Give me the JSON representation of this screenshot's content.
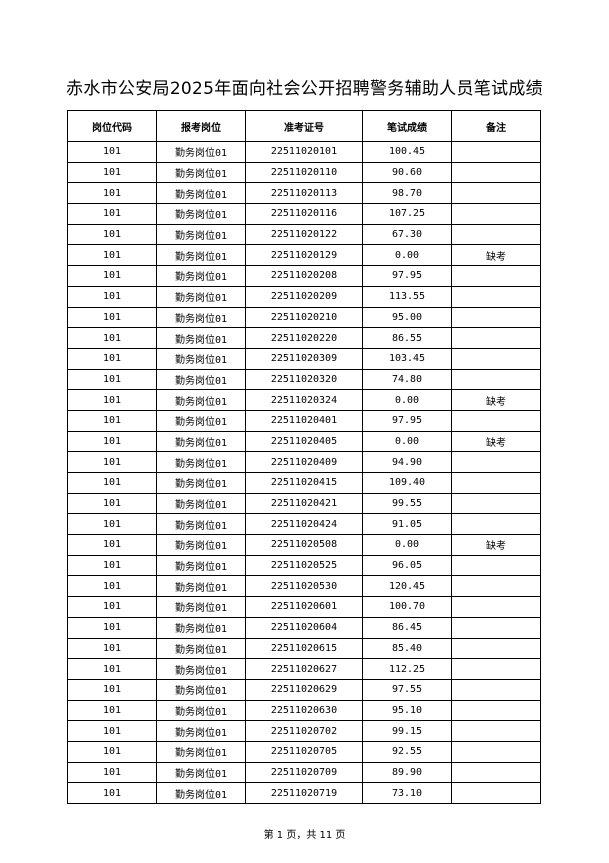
{
  "title": "赤水市公安局2025年面向社会公开招聘警务辅助人员笔试成绩",
  "table": {
    "headers": [
      "岗位代码",
      "报考岗位",
      "准考证号",
      "笔试成绩",
      "备注"
    ],
    "rows": [
      [
        "101",
        "勤务岗位01",
        "22511020101",
        "100.45",
        ""
      ],
      [
        "101",
        "勤务岗位01",
        "22511020110",
        "90.60",
        ""
      ],
      [
        "101",
        "勤务岗位01",
        "22511020113",
        "98.70",
        ""
      ],
      [
        "101",
        "勤务岗位01",
        "22511020116",
        "107.25",
        ""
      ],
      [
        "101",
        "勤务岗位01",
        "22511020122",
        "67.30",
        ""
      ],
      [
        "101",
        "勤务岗位01",
        "22511020129",
        "0.00",
        "缺考"
      ],
      [
        "101",
        "勤务岗位01",
        "22511020208",
        "97.95",
        ""
      ],
      [
        "101",
        "勤务岗位01",
        "22511020209",
        "113.55",
        ""
      ],
      [
        "101",
        "勤务岗位01",
        "22511020210",
        "95.00",
        ""
      ],
      [
        "101",
        "勤务岗位01",
        "22511020220",
        "86.55",
        ""
      ],
      [
        "101",
        "勤务岗位01",
        "22511020309",
        "103.45",
        ""
      ],
      [
        "101",
        "勤务岗位01",
        "22511020320",
        "74.80",
        ""
      ],
      [
        "101",
        "勤务岗位01",
        "22511020324",
        "0.00",
        "缺考"
      ],
      [
        "101",
        "勤务岗位01",
        "22511020401",
        "97.95",
        ""
      ],
      [
        "101",
        "勤务岗位01",
        "22511020405",
        "0.00",
        "缺考"
      ],
      [
        "101",
        "勤务岗位01",
        "22511020409",
        "94.90",
        ""
      ],
      [
        "101",
        "勤务岗位01",
        "22511020415",
        "109.40",
        ""
      ],
      [
        "101",
        "勤务岗位01",
        "22511020421",
        "99.55",
        ""
      ],
      [
        "101",
        "勤务岗位01",
        "22511020424",
        "91.05",
        ""
      ],
      [
        "101",
        "勤务岗位01",
        "22511020508",
        "0.00",
        "缺考"
      ],
      [
        "101",
        "勤务岗位01",
        "22511020525",
        "96.05",
        ""
      ],
      [
        "101",
        "勤务岗位01",
        "22511020530",
        "120.45",
        ""
      ],
      [
        "101",
        "勤务岗位01",
        "22511020601",
        "100.70",
        ""
      ],
      [
        "101",
        "勤务岗位01",
        "22511020604",
        "86.45",
        ""
      ],
      [
        "101",
        "勤务岗位01",
        "22511020615",
        "85.40",
        ""
      ],
      [
        "101",
        "勤务岗位01",
        "22511020627",
        "112.25",
        ""
      ],
      [
        "101",
        "勤务岗位01",
        "22511020629",
        "97.55",
        ""
      ],
      [
        "101",
        "勤务岗位01",
        "22511020630",
        "95.10",
        ""
      ],
      [
        "101",
        "勤务岗位01",
        "22511020702",
        "99.15",
        ""
      ],
      [
        "101",
        "勤务岗位01",
        "22511020705",
        "92.55",
        ""
      ],
      [
        "101",
        "勤务岗位01",
        "22511020709",
        "89.90",
        ""
      ],
      [
        "101",
        "勤务岗位01",
        "22511020719",
        "73.10",
        ""
      ]
    ]
  },
  "footer": "第 1 页，共 11 页"
}
